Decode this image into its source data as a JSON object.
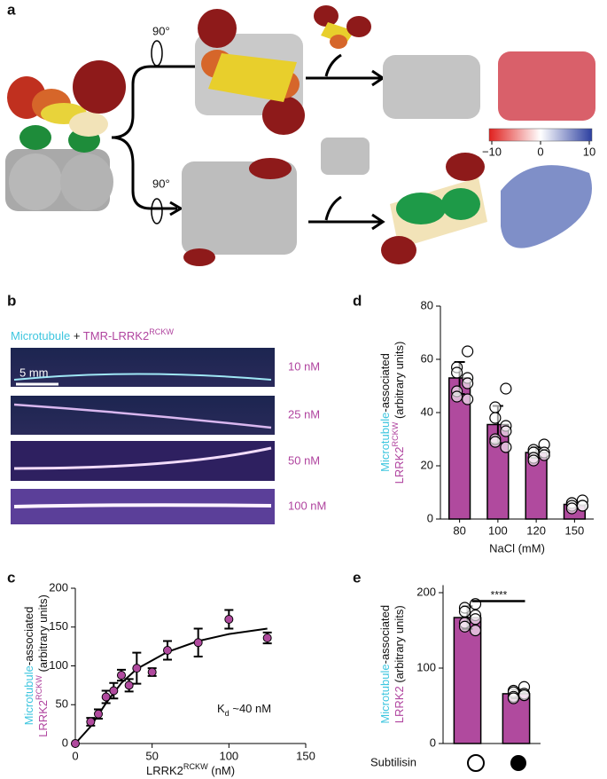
{
  "panel_labels": [
    "a",
    "b",
    "c",
    "d",
    "e"
  ],
  "panel_a": {
    "rotations": [
      "90°",
      "90°"
    ],
    "colorbar": {
      "lim": [
        -10,
        10
      ],
      "ticks": [
        {
          "value": -10,
          "label": "−10"
        },
        0,
        10
      ]
    }
  },
  "panel_b": {
    "legend": [
      {
        "text": "Microtubule",
        "color": "#3ec6df"
      },
      {
        "text": " + "
      },
      {
        "text": "TMR-LRRK2",
        "color": "#b0449f"
      },
      {
        "text": "RCKW",
        "color": "#b0449f",
        "sup": true
      }
    ],
    "scale_bar": "5 mm",
    "concentrations": [
      "10 nM",
      "25 nM",
      "50 nM",
      "100 nM"
    ],
    "concentration_color": "#b0449f"
  },
  "chart_data": [
    {
      "type": "bar",
      "color": "#b04a9e",
      "categories": [
        "80",
        "100",
        "120",
        "150"
      ],
      "values": [
        53,
        35.5,
        25,
        5.5
      ],
      "errors": [
        6,
        7,
        2,
        1
      ],
      "points": [
        [
          63,
          57,
          55,
          53,
          51,
          48,
          46,
          45
        ],
        [
          49,
          42,
          38,
          35,
          33,
          30,
          29,
          27
        ],
        [
          28,
          26,
          25,
          25,
          24,
          23,
          22
        ],
        [
          7,
          6,
          6,
          5,
          5,
          5,
          4
        ]
      ],
      "ylim": [
        0,
        80
      ],
      "yticks": [
        0,
        20,
        40,
        60,
        80
      ],
      "x_label": "NaCl (mM)",
      "y_label": [
        [
          {
            "text": "Microtubule",
            "color": "#3ec6df"
          },
          {
            "text": "-associated"
          }
        ],
        [
          {
            "text": "LRRK2",
            "color": "#b0449f"
          },
          {
            "text": "RCKW",
            "color": "#b0449f",
            "sup": true
          },
          {
            "text": " (arbitrary units)"
          }
        ]
      ]
    },
    {
      "type": "scatter",
      "color": "#b04a9e",
      "x": [
        0,
        10,
        15,
        20,
        25,
        30,
        35,
        40,
        50,
        60,
        80,
        100,
        125
      ],
      "y": [
        0,
        28,
        38,
        60,
        68,
        88,
        75,
        97,
        92,
        120,
        130,
        160,
        136
      ],
      "errors": [
        0,
        5,
        6,
        8,
        10,
        7,
        8,
        20,
        5,
        12,
        18,
        12,
        7
      ],
      "fit": {
        "x": [
          0,
          10,
          20,
          30,
          40,
          60,
          80,
          100,
          125
        ],
        "y": [
          0,
          22,
          52,
          78,
          96,
          118,
          132,
          141,
          148
        ]
      },
      "xlim": [
        0,
        150
      ],
      "xticks": [
        0,
        50,
        100,
        150
      ],
      "ylim": [
        0,
        200
      ],
      "yticks": [
        0,
        50,
        100,
        150,
        200
      ],
      "annotation": [
        {
          "text": "K"
        },
        {
          "text": "d",
          "sub": true
        },
        {
          "text": " ~40 nM"
        }
      ],
      "x_label": [
        {
          "text": "LRRK2"
        },
        {
          "text": "RCKW",
          "sup": true
        },
        {
          "text": " (nM)"
        }
      ],
      "y_label": [
        [
          {
            "text": "Microtubule",
            "color": "#3ec6df"
          },
          {
            "text": "-associated"
          }
        ],
        [
          {
            "text": "LRRK2",
            "color": "#b0449f"
          },
          {
            "text": "RCKW",
            "color": "#b0449f",
            "sup": true
          },
          {
            "text": " (arbitrary units)"
          }
        ]
      ]
    },
    {
      "type": "bar",
      "color": "#b04a9e",
      "categories": [
        null,
        null
      ],
      "values": [
        167,
        66
      ],
      "errors": [
        15,
        6
      ],
      "points": [
        [
          185,
          180,
          175,
          170,
          165,
          160,
          155,
          150
        ],
        [
          75,
          70,
          68,
          66,
          64,
          62,
          60
        ]
      ],
      "ylim": [
        0,
        210
      ],
      "yticks": [
        0,
        100,
        200
      ],
      "significance": "****",
      "x_label": "Subtilisin",
      "y_label": [
        [
          {
            "text": "Microtubule",
            "color": "#3ec6df"
          },
          {
            "text": "-associated"
          }
        ],
        [
          {
            "text": "LRRK2",
            "color": "#b0449f"
          },
          {
            "text": " (arbitrary units)"
          }
        ]
      ]
    }
  ]
}
